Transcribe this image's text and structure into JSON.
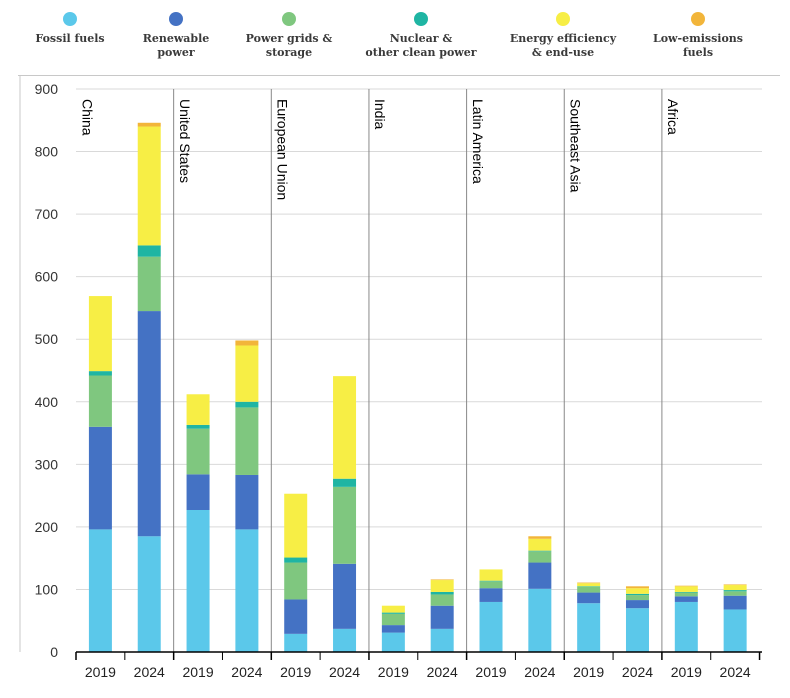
{
  "legend": [
    {
      "label": "Fossil fuels",
      "color": "#5bc8ea"
    },
    {
      "label": "Renewable\npower",
      "color": "#4472c4"
    },
    {
      "label": "Power grids &\nstorage",
      "color": "#7fc77f"
    },
    {
      "label": "Nuclear &\nother clean power",
      "color": "#1fb5a3"
    },
    {
      "label": "Energy efficiency\n& end-use",
      "color": "#f7ee45"
    },
    {
      "label": "Low-emissions\nfuels",
      "color": "#f2b53a"
    }
  ],
  "chart_data": {
    "type": "bar",
    "stacked": true,
    "ylim": [
      0,
      900
    ],
    "yticks": [
      0,
      100,
      200,
      300,
      400,
      500,
      600,
      700,
      800,
      900
    ],
    "grid": true,
    "legend_position": "top",
    "regions": [
      "China",
      "United States",
      "European Union",
      "India",
      "Latin America",
      "Southeast Asia",
      "Africa"
    ],
    "years": [
      "2019",
      "2024"
    ],
    "series": [
      {
        "name": "Fossil fuels",
        "color": "#5bc8ea",
        "values": [
          [
            196,
            185
          ],
          [
            227,
            196
          ],
          [
            29,
            37
          ],
          [
            31,
            37
          ],
          [
            80,
            101
          ],
          [
            78,
            70
          ],
          [
            80,
            68
          ]
        ]
      },
      {
        "name": "Renewable power",
        "color": "#4472c4",
        "values": [
          [
            164,
            360
          ],
          [
            57,
            87
          ],
          [
            55,
            104
          ],
          [
            12,
            37
          ],
          [
            22,
            42
          ],
          [
            17,
            13
          ],
          [
            9,
            22
          ]
        ]
      },
      {
        "name": "Power grids & storage",
        "color": "#7fc77f",
        "values": [
          [
            82,
            87
          ],
          [
            73,
            108
          ],
          [
            59,
            123
          ],
          [
            18,
            18
          ],
          [
            11,
            18
          ],
          [
            9,
            8
          ],
          [
            6,
            7
          ]
        ]
      },
      {
        "name": "Nuclear & other clean power",
        "color": "#1fb5a3",
        "values": [
          [
            7,
            18
          ],
          [
            6,
            9
          ],
          [
            8,
            13
          ],
          [
            2,
            4
          ],
          [
            1,
            1
          ],
          [
            1,
            2
          ],
          [
            1,
            2
          ]
        ]
      },
      {
        "name": "Energy efficiency & end-use",
        "color": "#f7ee45",
        "values": [
          [
            120,
            190
          ],
          [
            49,
            90
          ],
          [
            102,
            164
          ],
          [
            11,
            19
          ],
          [
            18,
            19
          ],
          [
            5,
            9
          ],
          [
            9,
            8
          ]
        ]
      },
      {
        "name": "Low-emissions fuels",
        "color": "#f2b53a",
        "values": [
          [
            0,
            6
          ],
          [
            0,
            8
          ],
          [
            0,
            0
          ],
          [
            0,
            1
          ],
          [
            0,
            4
          ],
          [
            1,
            3
          ],
          [
            1,
            1
          ]
        ]
      }
    ]
  }
}
